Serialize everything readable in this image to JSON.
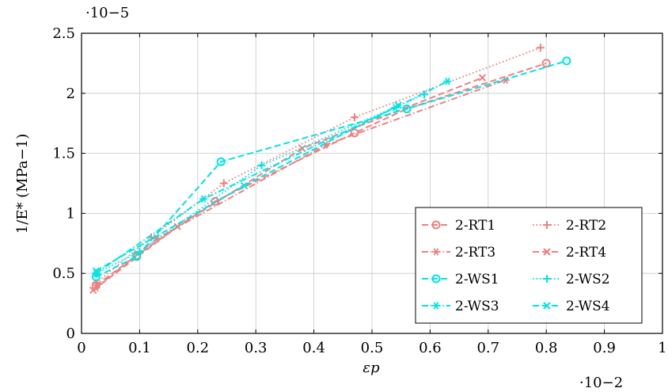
{
  "chart_data": {
    "type": "line",
    "xlabel": "εp",
    "ylabel": "1/E* (MPa−1)",
    "x_multiplier": "·10−2",
    "y_multiplier": "·10−5",
    "xlim": [
      0,
      1
    ],
    "ylim": [
      0,
      2.5
    ],
    "x_ticks": [
      "0",
      "0.1",
      "0.2",
      "0.3",
      "0.4",
      "0.5",
      "0.6",
      "0.7",
      "0.8",
      "0.9",
      "1"
    ],
    "y_ticks": [
      "0",
      "0.5",
      "1",
      "1.5",
      "2",
      "2.5"
    ],
    "grid": true,
    "legend_position": "bottom-right",
    "series": [
      {
        "name": "2-RT1",
        "color": "#f08080",
        "marker": "circle",
        "dash": "dashed",
        "x": [
          0.025,
          0.095,
          0.23,
          0.47,
          0.56,
          0.8
        ],
        "y": [
          0.4,
          0.65,
          1.1,
          1.67,
          1.87,
          2.25
        ]
      },
      {
        "name": "2-RT2",
        "color": "#f08080",
        "marker": "plus",
        "dash": "dotted",
        "x": [
          0.025,
          0.12,
          0.245,
          0.47,
          0.79
        ],
        "y": [
          0.42,
          0.8,
          1.25,
          1.8,
          2.38
        ]
      },
      {
        "name": "2-RT3",
        "color": "#f08080",
        "marker": "asterisk",
        "dash": "dashdot",
        "x": [
          0.025,
          0.13,
          0.42,
          0.73
        ],
        "y": [
          0.38,
          0.79,
          1.57,
          2.11
        ]
      },
      {
        "name": "2-RT4",
        "color": "#f08080",
        "marker": "x",
        "dash": "dashed",
        "x": [
          0.02,
          0.165,
          0.38,
          0.69
        ],
        "y": [
          0.36,
          0.89,
          1.54,
          2.13
        ]
      },
      {
        "name": "2-WS1",
        "color": "#00e5e5",
        "marker": "circle",
        "dash": "dashed",
        "x": [
          0.025,
          0.095,
          0.24,
          0.56,
          0.835
        ],
        "y": [
          0.47,
          0.64,
          1.43,
          1.87,
          2.27
        ]
      },
      {
        "name": "2-WS2",
        "color": "#00e5e5",
        "marker": "plus",
        "dash": "dotted",
        "x": [
          0.025,
          0.1,
          0.31,
          0.59
        ],
        "y": [
          0.5,
          0.68,
          1.4,
          1.99
        ]
      },
      {
        "name": "2-WS3",
        "color": "#00e5e5",
        "marker": "asterisk",
        "dash": "dashdot",
        "x": [
          0.025,
          0.21,
          0.54,
          0.63
        ],
        "y": [
          0.5,
          1.12,
          1.88,
          2.1
        ]
      },
      {
        "name": "2-WS4",
        "color": "#00e5e5",
        "marker": "x",
        "dash": "dashed",
        "x": [
          0.025,
          0.28,
          0.545
        ],
        "y": [
          0.52,
          1.23,
          1.9
        ]
      }
    ]
  }
}
